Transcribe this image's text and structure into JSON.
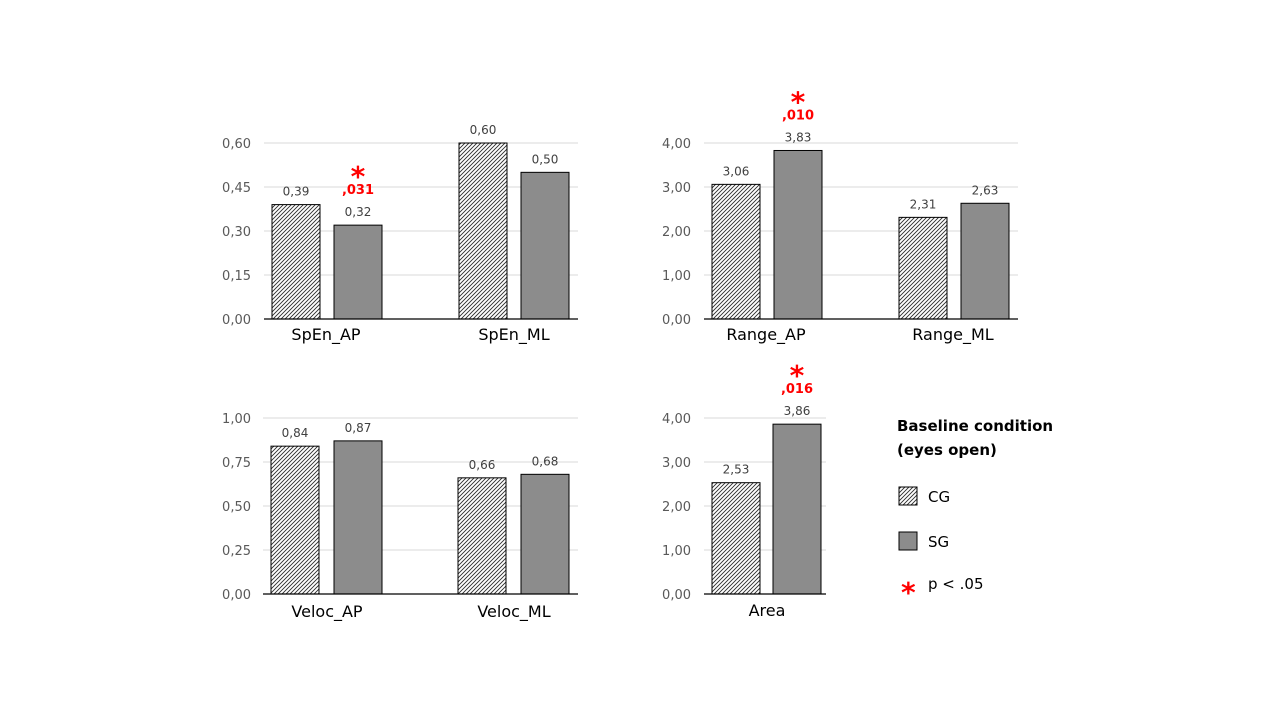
{
  "colors": {
    "sg_fill": "#8c8c8c",
    "cg_fill": "hatched",
    "significance": "#ff0000",
    "gridline": "#d9d9d9",
    "axis": "#000000"
  },
  "legend": {
    "title_line1": "Baseline condition",
    "title_line2": "(eyes open)",
    "items": [
      {
        "key": "cg",
        "label": "CG"
      },
      {
        "key": "sg",
        "label": "SG"
      },
      {
        "key": "sig",
        "label": "p < .05",
        "icon": "asterisk-icon"
      }
    ]
  },
  "chart_data": [
    {
      "type": "bar",
      "id": "spen",
      "categories": [
        "SpEn_AP",
        "SpEn_ML"
      ],
      "series": [
        {
          "name": "CG",
          "values": [
            0.39,
            0.6
          ],
          "labels": [
            "0,39",
            "0,60"
          ]
        },
        {
          "name": "SG",
          "values": [
            0.32,
            0.5
          ],
          "labels": [
            "0,32",
            "0,50"
          ]
        }
      ],
      "ylim": [
        0,
        0.6
      ],
      "yticks": [
        0,
        0.15,
        0.3,
        0.45,
        0.6
      ],
      "ytick_labels": [
        "0,00",
        "0,15",
        "0,30",
        "0,45",
        "0,60"
      ],
      "grid": true,
      "significance": [
        {
          "category": 0,
          "series": 1,
          "star": "*",
          "p": ",031"
        }
      ]
    },
    {
      "type": "bar",
      "id": "range",
      "categories": [
        "Range_AP",
        "Range_ML"
      ],
      "series": [
        {
          "name": "CG",
          "values": [
            3.06,
            2.31
          ],
          "labels": [
            "3,06",
            "2,31"
          ]
        },
        {
          "name": "SG",
          "values": [
            3.83,
            2.63
          ],
          "labels": [
            "3,83",
            "2,63"
          ]
        }
      ],
      "ylim": [
        0,
        4.0
      ],
      "yticks": [
        0,
        1,
        2,
        3,
        4
      ],
      "ytick_labels": [
        "0,00",
        "1,00",
        "2,00",
        "3,00",
        "4,00"
      ],
      "grid": true,
      "significance": [
        {
          "category": 0,
          "series": 1,
          "star": "*",
          "p": ",010"
        }
      ]
    },
    {
      "type": "bar",
      "id": "veloc",
      "categories": [
        "Veloc_AP",
        "Veloc_ML"
      ],
      "series": [
        {
          "name": "CG",
          "values": [
            0.84,
            0.66
          ],
          "labels": [
            "0,84",
            "0,66"
          ]
        },
        {
          "name": "SG",
          "values": [
            0.87,
            0.68
          ],
          "labels": [
            "0,87",
            "0,68"
          ]
        }
      ],
      "ylim": [
        0,
        1.0
      ],
      "yticks": [
        0,
        0.25,
        0.5,
        0.75,
        1.0
      ],
      "ytick_labels": [
        "0,00",
        "0,25",
        "0,50",
        "0,75",
        "1,00"
      ],
      "grid": true,
      "significance": []
    },
    {
      "type": "bar",
      "id": "area",
      "categories": [
        "Area"
      ],
      "series": [
        {
          "name": "CG",
          "values": [
            2.53
          ],
          "labels": [
            "2,53"
          ]
        },
        {
          "name": "SG",
          "values": [
            3.86
          ],
          "labels": [
            "3,86"
          ]
        }
      ],
      "ylim": [
        0,
        4.0
      ],
      "yticks": [
        0,
        1,
        2,
        3,
        4
      ],
      "ytick_labels": [
        "0,00",
        "1,00",
        "2,00",
        "3,00",
        "4,00"
      ],
      "grid": true,
      "significance": [
        {
          "category": 0,
          "series": 1,
          "star": "*",
          "p": ",016"
        }
      ]
    }
  ]
}
